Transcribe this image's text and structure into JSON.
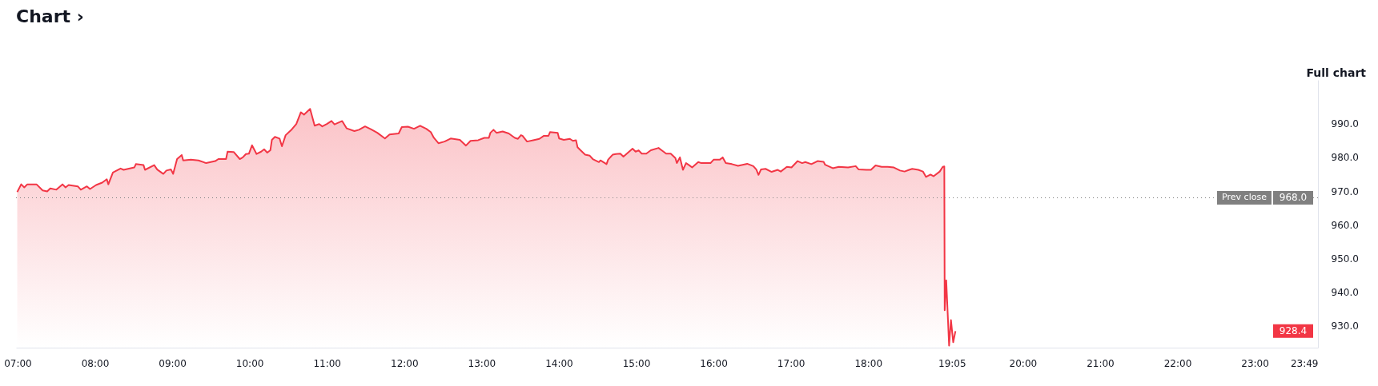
{
  "chart_data": {
    "type": "area",
    "title": "Chart ›",
    "x": [
      6.996,
      7.047,
      7.087,
      7.126,
      7.245,
      7.324,
      7.383,
      7.423,
      7.502,
      7.581,
      7.621,
      7.66,
      7.779,
      7.818,
      7.897,
      7.937,
      8.016,
      8.095,
      8.154,
      8.174,
      8.233,
      8.332,
      8.372,
      8.51,
      8.53,
      8.629,
      8.648,
      8.767,
      8.806,
      8.885,
      8.925,
      8.984,
      9.012,
      9.063,
      9.123,
      9.142,
      9.241,
      9.34,
      9.439,
      9.557,
      9.597,
      9.696,
      9.716,
      9.795,
      9.874,
      9.913,
      9.953,
      9.992,
      10.032,
      10.091,
      10.15,
      10.19,
      10.229,
      10.269,
      10.289,
      10.328,
      10.388,
      10.419,
      10.467,
      10.546,
      10.605,
      10.664,
      10.704,
      10.783,
      10.842,
      10.901,
      10.941,
      11.0,
      11.06,
      11.099,
      11.198,
      11.257,
      11.356,
      11.415,
      11.494,
      11.573,
      11.652,
      11.751,
      11.811,
      11.929,
      11.969,
      12.048,
      12.127,
      12.206,
      12.285,
      12.344,
      12.384,
      12.443,
      12.522,
      12.601,
      12.72,
      12.799,
      12.858,
      12.957,
      13.036,
      13.095,
      13.115,
      13.155,
      13.194,
      13.273,
      13.352,
      13.431,
      13.471,
      13.51,
      13.53,
      13.589,
      13.668,
      13.748,
      13.807,
      13.866,
      13.886,
      13.985,
      14.004,
      14.064,
      14.143,
      14.182,
      14.222,
      14.242,
      14.281,
      14.34,
      14.4,
      14.439,
      14.518,
      14.538,
      14.617,
      14.637,
      14.696,
      14.736,
      14.795,
      14.835,
      14.894,
      14.953,
      14.993,
      15.032,
      15.072,
      15.131,
      15.19,
      15.289,
      15.329,
      15.388,
      15.447,
      15.507,
      15.526,
      15.566,
      15.605,
      15.645,
      15.684,
      15.724,
      15.803,
      15.843,
      15.961,
      16.001,
      16.08,
      16.119,
      16.159,
      16.238,
      16.317,
      16.436,
      16.515,
      16.554,
      16.582,
      16.614,
      16.673,
      16.752,
      16.831,
      16.87,
      16.949,
      17.009,
      17.088,
      17.147,
      17.187,
      17.266,
      17.345,
      17.424,
      17.444,
      17.542,
      17.621,
      17.74,
      17.839,
      17.878,
      17.977,
      18.036,
      18.096,
      18.175,
      18.254,
      18.333,
      18.412,
      18.471,
      18.53,
      18.57,
      18.649,
      18.708,
      18.748,
      18.807,
      18.847,
      18.926,
      18.965,
      18.985,
      18.99,
      19.01,
      19.047,
      19.071,
      19.1,
      19.129
    ],
    "series": [
      {
        "color": "#f23645",
        "values": [
          969.7,
          972.0,
          971.1,
          972.0,
          972.0,
          970.2,
          969.9,
          970.8,
          970.4,
          972.0,
          971.1,
          971.8,
          971.4,
          970.4,
          971.4,
          970.6,
          971.8,
          972.5,
          973.5,
          972.0,
          975.5,
          976.7,
          976.3,
          977.0,
          978.0,
          977.7,
          976.3,
          977.7,
          976.4,
          975.1,
          976.1,
          976.4,
          975.1,
          979.5,
          980.7,
          979.1,
          979.3,
          979.1,
          978.3,
          978.9,
          979.5,
          979.5,
          981.7,
          981.6,
          979.5,
          980.0,
          981.0,
          981.1,
          983.6,
          981.0,
          981.7,
          982.4,
          981.4,
          982.1,
          985.2,
          986.1,
          985.6,
          983.3,
          986.6,
          988.3,
          989.9,
          993.4,
          992.7,
          994.4,
          989.4,
          989.9,
          989.2,
          989.9,
          990.8,
          989.8,
          990.8,
          988.6,
          987.8,
          988.2,
          989.2,
          988.3,
          987.3,
          985.6,
          986.8,
          987.1,
          989.0,
          989.1,
          988.5,
          989.4,
          988.5,
          987.5,
          985.8,
          984.2,
          984.7,
          985.6,
          985.2,
          983.5,
          984.9,
          985.1,
          985.8,
          985.8,
          987.3,
          988.2,
          987.3,
          987.7,
          987.1,
          985.8,
          985.5,
          986.6,
          986.4,
          984.7,
          985.1,
          985.5,
          986.4,
          986.4,
          987.5,
          987.3,
          985.6,
          985.2,
          985.5,
          984.9,
          985.1,
          983.0,
          982.1,
          980.8,
          980.5,
          979.5,
          978.6,
          979.1,
          978.0,
          979.3,
          980.8,
          981.0,
          981.1,
          980.2,
          981.4,
          982.6,
          981.7,
          982.1,
          981.1,
          981.1,
          982.1,
          982.8,
          982.1,
          981.1,
          981.1,
          979.8,
          978.3,
          980.0,
          976.3,
          978.3,
          977.7,
          977.0,
          978.6,
          978.3,
          978.3,
          979.3,
          979.3,
          980.0,
          978.3,
          978.0,
          977.5,
          978.1,
          977.4,
          976.4,
          974.8,
          976.4,
          976.6,
          975.7,
          976.3,
          975.8,
          977.2,
          977.0,
          978.9,
          978.3,
          978.6,
          978.0,
          978.9,
          978.7,
          977.8,
          976.8,
          977.2,
          977.0,
          977.4,
          976.4,
          976.3,
          976.3,
          977.6,
          977.2,
          977.2,
          977.0,
          976.1,
          975.8,
          976.3,
          976.6,
          976.3,
          975.8,
          974.2,
          974.9,
          974.4,
          975.8,
          977.2,
          977.3,
          934.6,
          943.5,
          924.1,
          931.7,
          925.1,
          928.4
        ]
      }
    ],
    "xlim": [
      6.98,
      23.817
    ],
    "xticks": [
      {
        "value": 7,
        "label": "07:00"
      },
      {
        "value": 8,
        "label": "08:00"
      },
      {
        "value": 9,
        "label": "09:00"
      },
      {
        "value": 10,
        "label": "10:00"
      },
      {
        "value": 11,
        "label": "11:00"
      },
      {
        "value": 12,
        "label": "12:00"
      },
      {
        "value": 13,
        "label": "13:00"
      },
      {
        "value": 14,
        "label": "14:00"
      },
      {
        "value": 15,
        "label": "15:00"
      },
      {
        "value": 16,
        "label": "16:00"
      },
      {
        "value": 17,
        "label": "17:00"
      },
      {
        "value": 18,
        "label": "18:00"
      },
      {
        "value": 19.083,
        "label": "19:05"
      },
      {
        "value": 20,
        "label": "20:00"
      },
      {
        "value": 21,
        "label": "21:00"
      },
      {
        "value": 22,
        "label": "22:00"
      },
      {
        "value": 23,
        "label": "23:00"
      },
      {
        "value": 23.817,
        "label": "23:49"
      }
    ],
    "ylim": [
      923.5,
      1003
    ],
    "yticks": [
      {
        "value": 930,
        "label": "930.0"
      },
      {
        "value": 940,
        "label": "940.0"
      },
      {
        "value": 950,
        "label": "950.0"
      },
      {
        "value": 960,
        "label": "960.0"
      },
      {
        "value": 970,
        "label": "970.0"
      },
      {
        "value": 980,
        "label": "980.0"
      },
      {
        "value": 990,
        "label": "990.0"
      }
    ],
    "ref_lines": [
      {
        "axis": "y",
        "value": 968.0,
        "label": "Prev close",
        "color": "#808080",
        "line_style": "dotted"
      }
    ],
    "annotations": [
      "968.0",
      "928.4",
      "Full chart"
    ],
    "grid": false
  }
}
